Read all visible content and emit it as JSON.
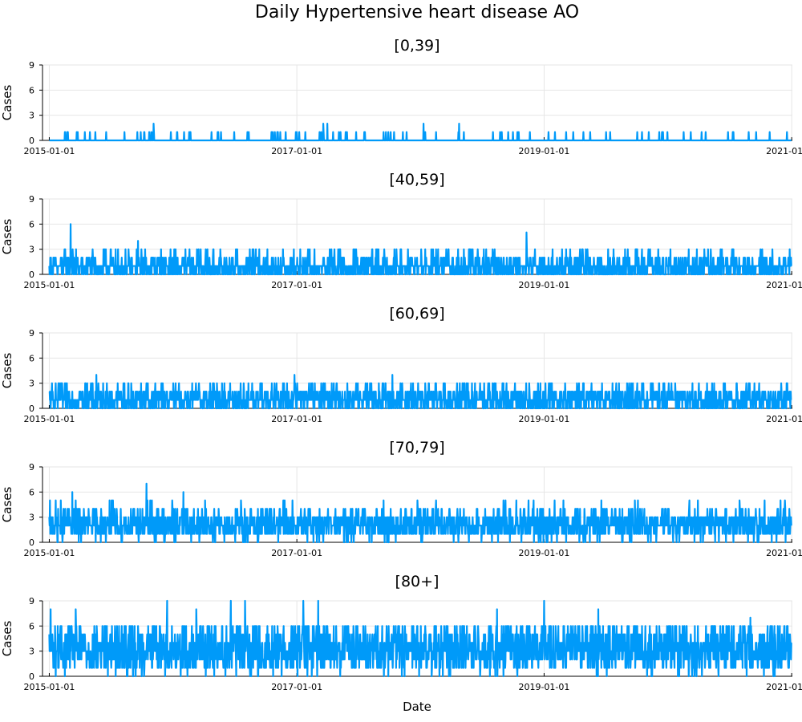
{
  "chart_data": {
    "type": "line",
    "title": "Daily Hypertensive heart disease AO",
    "xlabel": "Date",
    "ylabel": "Cases",
    "x_range": [
      "2015-01-01",
      "2020-12-31"
    ],
    "x_ticks": [
      "2015-01-01",
      "2017-01-01",
      "2019-01-01",
      "2021-01-01"
    ],
    "y_ticks": [
      0,
      3,
      6,
      9
    ],
    "ylim": [
      0,
      9
    ],
    "grid": true,
    "series_color": "#009af9",
    "panels": [
      {
        "title": "[0,39]",
        "typical_range": [
          0,
          1
        ],
        "events": [
          {
            "date": "2015-11-05",
            "value": 2
          },
          {
            "date": "2017-03-20",
            "value": 2
          },
          {
            "date": "2017-04-01",
            "value": 2
          },
          {
            "date": "2018-01-10",
            "value": 2
          },
          {
            "date": "2018-04-25",
            "value": 2
          }
        ]
      },
      {
        "title": "[40,59]",
        "typical_range": [
          0,
          2
        ],
        "events": [
          {
            "date": "2015-03-05",
            "value": 6
          },
          {
            "date": "2015-09-20",
            "value": 4
          },
          {
            "date": "2015-07-01",
            "value": 3
          },
          {
            "date": "2016-08-15",
            "value": 3
          },
          {
            "date": "2018-11-10",
            "value": 5
          },
          {
            "date": "2019-10-01",
            "value": 3
          }
        ]
      },
      {
        "title": "[60,69]",
        "typical_range": [
          0,
          2
        ],
        "events": [
          {
            "date": "2015-05-20",
            "value": 4
          },
          {
            "date": "2016-12-25",
            "value": 4
          },
          {
            "date": "2017-10-10",
            "value": 4
          },
          {
            "date": "2015-02-05",
            "value": 3
          },
          {
            "date": "2016-06-01",
            "value": 3
          }
        ]
      },
      {
        "title": "[70,79]",
        "typical_range": [
          0,
          3
        ],
        "events": [
          {
            "date": "2015-03-10",
            "value": 6
          },
          {
            "date": "2015-10-15",
            "value": 7
          },
          {
            "date": "2016-02-01",
            "value": 6
          },
          {
            "date": "2016-07-20",
            "value": 5
          },
          {
            "date": "2018-12-01",
            "value": 5
          },
          {
            "date": "2019-10-05",
            "value": 5
          },
          {
            "date": "2020-11-20",
            "value": 4
          }
        ]
      },
      {
        "title": "[80+]",
        "typical_range": [
          0,
          6
        ],
        "events": [
          {
            "date": "2015-01-05",
            "value": 8
          },
          {
            "date": "2015-03-20",
            "value": 8
          },
          {
            "date": "2015-12-15",
            "value": 9
          },
          {
            "date": "2016-03-10",
            "value": 8
          },
          {
            "date": "2016-06-20",
            "value": 9
          },
          {
            "date": "2016-08-01",
            "value": 9
          },
          {
            "date": "2017-01-20",
            "value": 9
          },
          {
            "date": "2017-03-05",
            "value": 9
          },
          {
            "date": "2019-01-01",
            "value": 9
          },
          {
            "date": "2018-08-15",
            "value": 8
          },
          {
            "date": "2019-06-10",
            "value": 8
          },
          {
            "date": "2020-09-01",
            "value": 7
          }
        ]
      }
    ]
  }
}
